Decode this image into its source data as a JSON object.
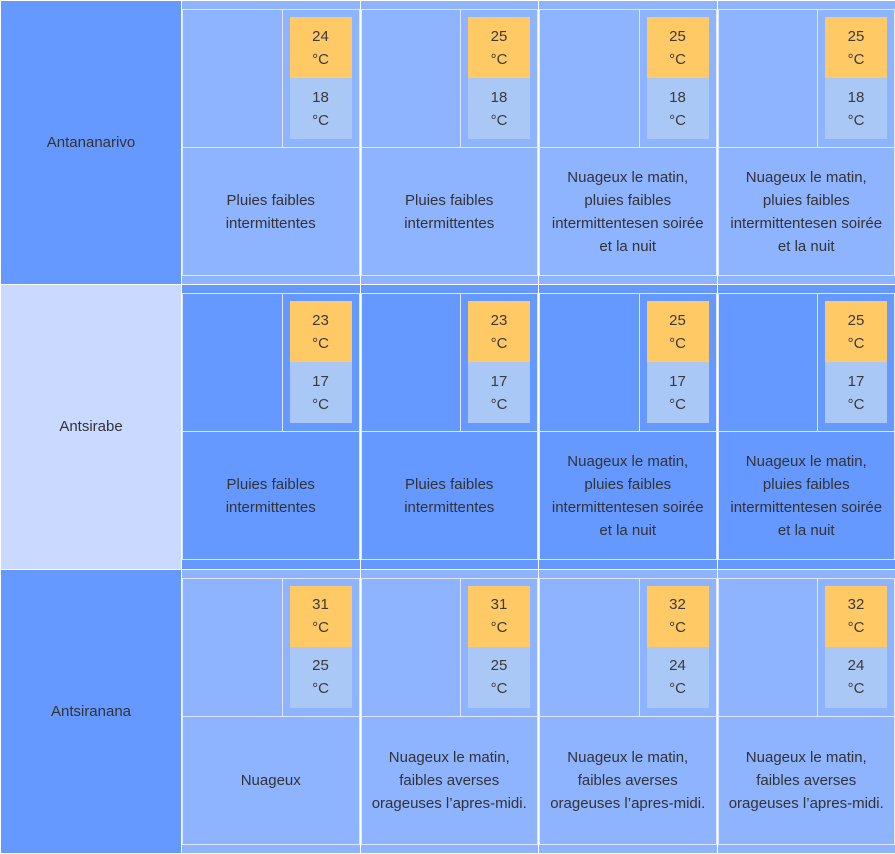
{
  "unit": "°C",
  "rows": [
    {
      "city": "Antananarivo",
      "days": [
        {
          "max": "24",
          "min": "18",
          "desc": "Pluies faibles intermittentes"
        },
        {
          "max": "25",
          "min": "18",
          "desc": "Pluies faibles intermittentes"
        },
        {
          "max": "25",
          "min": "18",
          "desc": "Nuageux le matin, pluies faibles intermittentesen soirée et la nuit"
        },
        {
          "max": "25",
          "min": "18",
          "desc": "Nuageux le matin, pluies faibles intermittentesen soirée et la nuit"
        }
      ]
    },
    {
      "city": "Antsirabe",
      "days": [
        {
          "max": "23",
          "min": "17",
          "desc": "Pluies faibles intermittentes"
        },
        {
          "max": "23",
          "min": "17",
          "desc": "Pluies faibles intermittentes"
        },
        {
          "max": "25",
          "min": "17",
          "desc": "Nuageux le matin, pluies faibles intermittentesen soirée et la nuit"
        },
        {
          "max": "25",
          "min": "17",
          "desc": "Nuageux le matin, pluies faibles intermittentesen soirée et la nuit"
        }
      ]
    },
    {
      "city": "Antsiranana",
      "days": [
        {
          "max": "31",
          "min": "25",
          "desc": "Nuageux"
        },
        {
          "max": "31",
          "min": "25",
          "desc": "Nuageux le matin, faibles averses orageuses l’apres-midi."
        },
        {
          "max": "32",
          "min": "24",
          "desc": "Nuageux le matin, faibles averses orageuses l’apres-midi."
        },
        {
          "max": "32",
          "min": "24",
          "desc": "Nuageux le matin, faibles averses orageuses l’apres-midi."
        }
      ]
    }
  ]
}
